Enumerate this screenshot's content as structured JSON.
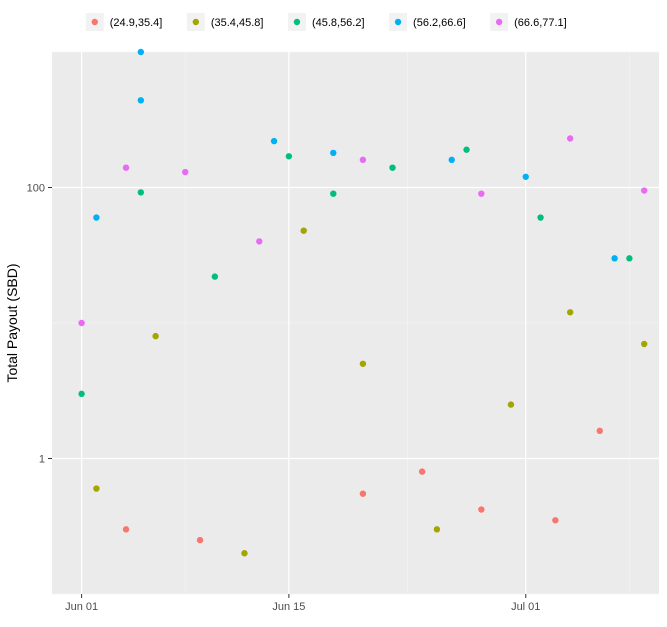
{
  "chart_data": {
    "type": "scatter",
    "title": "",
    "xlabel": "",
    "ylabel": "Total Payout (SBD)",
    "x_type": "date",
    "y_scale": "log10",
    "xlim": [
      "2017-05-30",
      "2017-07-10"
    ],
    "ylim": [
      0.1,
      1000
    ],
    "x_ticks": [
      {
        "value": "2017-06-01",
        "label": "Jun 01"
      },
      {
        "value": "2017-06-15",
        "label": "Jun 15"
      },
      {
        "value": "2017-07-01",
        "label": "Jul 01"
      }
    ],
    "y_ticks": [
      {
        "value": 1,
        "label": "1"
      },
      {
        "value": 100,
        "label": "100"
      }
    ],
    "grid": true,
    "legend_position": "top",
    "series": [
      {
        "name": "(24.9,35.4]",
        "color": "#F8766D",
        "x": [
          "2017-06-04",
          "2017-06-20",
          "2017-06-28",
          "2017-07-03",
          "2017-07-06",
          "2017-06-09",
          "2017-06-24"
        ],
        "y": [
          0.3,
          0.55,
          0.42,
          0.35,
          1.6,
          0.25,
          0.8
        ]
      },
      {
        "name": "(35.4,45.8]",
        "color": "#A3A500",
        "x": [
          "2017-06-02",
          "2017-06-06",
          "2017-06-12",
          "2017-06-16",
          "2017-06-20",
          "2017-06-25",
          "2017-06-30",
          "2017-07-04",
          "2017-07-09"
        ],
        "y": [
          0.6,
          8.0,
          0.2,
          48.0,
          5.0,
          0.3,
          2.5,
          12.0,
          7.0
        ]
      },
      {
        "name": "(45.8,56.2]",
        "color": "#00BF7D",
        "x": [
          "2017-06-01",
          "2017-06-05",
          "2017-06-10",
          "2017-06-15",
          "2017-06-18",
          "2017-06-22",
          "2017-06-27",
          "2017-07-02",
          "2017-07-08"
        ],
        "y": [
          3.0,
          92.0,
          22.0,
          170.0,
          90.0,
          140.0,
          190.0,
          60.0,
          30.0
        ]
      },
      {
        "name": "(56.2,66.6]",
        "color": "#00B0F6",
        "x": [
          "2017-06-02",
          "2017-06-05",
          "2017-06-05",
          "2017-06-14",
          "2017-06-18",
          "2017-06-26",
          "2017-07-01",
          "2017-07-07"
        ],
        "y": [
          60.0,
          1000.0,
          440.0,
          220.0,
          180.0,
          160.0,
          120.0,
          30.0
        ]
      },
      {
        "name": "(66.6,77.1]",
        "color": "#E76BF3",
        "x": [
          "2017-06-01",
          "2017-06-04",
          "2017-06-08",
          "2017-06-13",
          "2017-06-20",
          "2017-06-28",
          "2017-07-04",
          "2017-07-09"
        ],
        "y": [
          10.0,
          140.0,
          130.0,
          40.0,
          160.0,
          90.0,
          230.0,
          95.0
        ]
      }
    ]
  }
}
